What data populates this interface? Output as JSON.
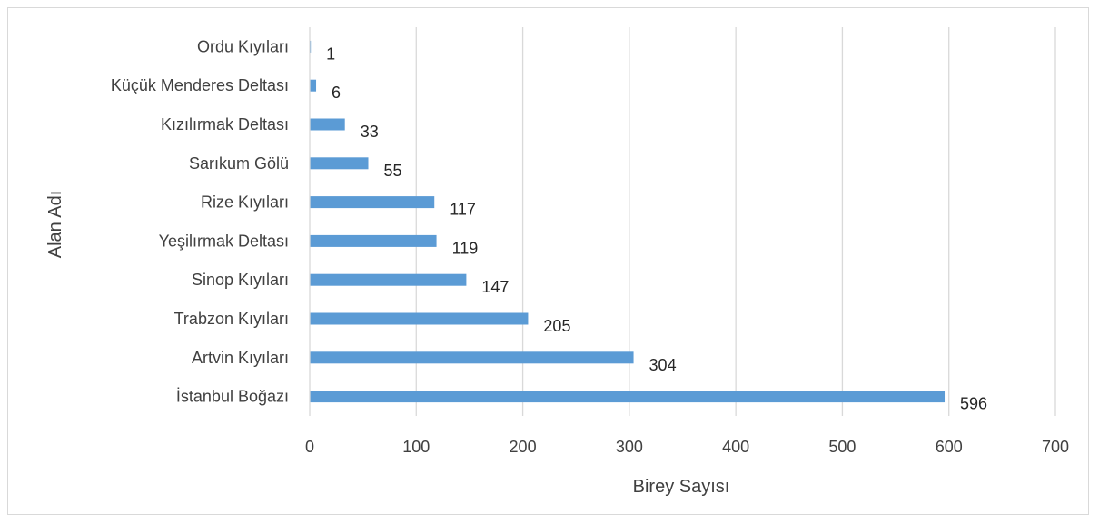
{
  "chart_data": {
    "type": "bar",
    "orientation": "horizontal",
    "categories": [
      "Ordu Kıyıları",
      "Küçük Menderes Deltası",
      "Kızılırmak Deltası",
      "Sarıkum Gölü",
      "Rize Kıyıları",
      "Yeşilırmak Deltası",
      "Sinop Kıyıları",
      "Trabzon Kıyıları",
      "Artvin Kıyıları",
      "İstanbul Boğazı"
    ],
    "values": [
      1,
      6,
      33,
      55,
      117,
      119,
      147,
      205,
      304,
      596
    ],
    "data_labels": [
      "1",
      "6",
      "33",
      "55",
      "117",
      "119",
      "147",
      "205",
      "304",
      "596"
    ],
    "xlabel": "Birey Sayısı",
    "ylabel": "Alan Adı",
    "xlim": [
      0,
      700
    ],
    "xticks": [
      0,
      100,
      200,
      300,
      400,
      500,
      600,
      700
    ],
    "xtick_labels": [
      "0",
      "100",
      "200",
      "300",
      "400",
      "500",
      "600",
      "700"
    ],
    "grid": "vertical",
    "legend": "none",
    "colors": {
      "bar": "#5b9bd5",
      "grid": "#d9d9d9",
      "axis": "#d9d9d9"
    }
  }
}
